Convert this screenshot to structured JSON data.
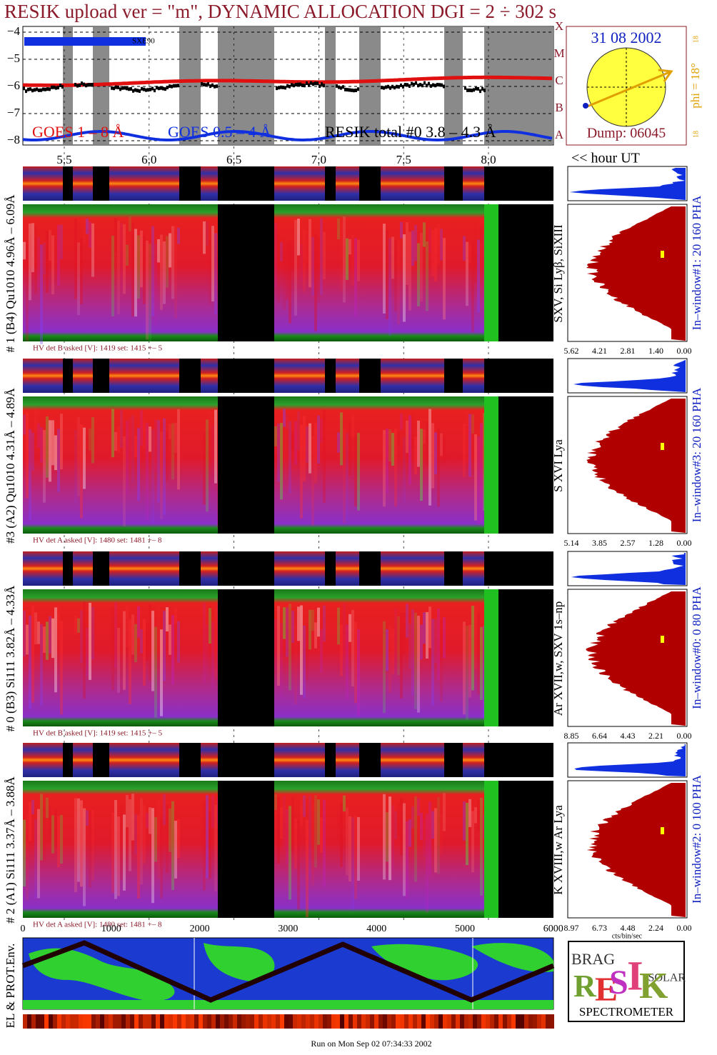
{
  "header": {
    "title": "RESIK upload ver = \"m\", DYNAMIC ALLOCATION  DGI =   2 ÷ 302 s"
  },
  "goes": {
    "yticks": [
      "−4",
      "−5",
      "−6",
      "−7",
      "−8"
    ],
    "classes": [
      "X",
      "M",
      "C",
      "B",
      "A"
    ],
    "legend": [
      "GOES 1 – 8 Å",
      "GOES 0.5 – 4 Å",
      "RESIK total #0  3.8 – 4.3 Å"
    ],
    "marker": "SXE90"
  },
  "sun": {
    "date": "31 08 2002",
    "phi": "phi = 18°",
    "dump": "Dump: 06045",
    "edge": "18"
  },
  "time_axis": {
    "ticks": [
      "5.5",
      "6.0",
      "6.5",
      "7.0",
      "7.5",
      "8.0"
    ],
    "unit": "<< hour UT"
  },
  "panels": [
    {
      "label": "# 1 (B4) Qu1010 4.96Å – 6.09Å",
      "lines": "SXV, Si Lyβ, SiXIII",
      "window": "In–window#1:   20 160  PHA",
      "hv": "HV det B asked [V]:  1419 set:  1415  +–   5",
      "hist_ticks": [
        "5.62",
        "4.21",
        "2.81",
        "1.40",
        "0.00"
      ]
    },
    {
      "label": "#3 (A2) Qu1010  4.31Å – 4.89Å",
      "lines": "S XVI Lya",
      "window": "In–window#3:   20 160  PHA",
      "hv": "HV det A asked [V]:  1480 set:  1481  +–   8",
      "hist_ticks": [
        "5.14",
        "3.85",
        "2.57",
        "1.28",
        "0.00"
      ]
    },
    {
      "label": "# 0 (B3) Si111  3.82Å – 4.33Å",
      "lines": "Ar XVII,w,  SXV 1s–np",
      "window": "In–window#0:   0  80  PHA",
      "hv": "HV det B asked [V]:  1419 set:  1415  +–   5",
      "hist_ticks": [
        "8.85",
        "6.64",
        "4.43",
        "2.21",
        "0.00"
      ]
    },
    {
      "label": "# 2 (A1) Si111  3.37Å – 3.88Å",
      "lines": "K XVIII,w  Ar Lya",
      "window": "In–window#2:   0 100  PHA",
      "hv": "HV det A asked [V]:  1480 set:  1481  +–   8",
      "hist_ticks": [
        "8.97",
        "6.73",
        "4.48",
        "2.24",
        "0.00"
      ]
    }
  ],
  "bottom_axis": {
    "ticks": [
      "0",
      "1000",
      "2000",
      "3000",
      "4000",
      "5000",
      "6000"
    ],
    "unit": "cts/bin/sec"
  },
  "map": {
    "label": "EL & PROT.Env."
  },
  "logo": {
    "letters": [
      "R",
      "E",
      "S",
      "I",
      "K"
    ],
    "brag": "BRAG",
    "solar": "SOLAR",
    "text": "SPECTROMETER"
  },
  "footer": "Run on Mon Sep 02 07:34:33 2002"
}
